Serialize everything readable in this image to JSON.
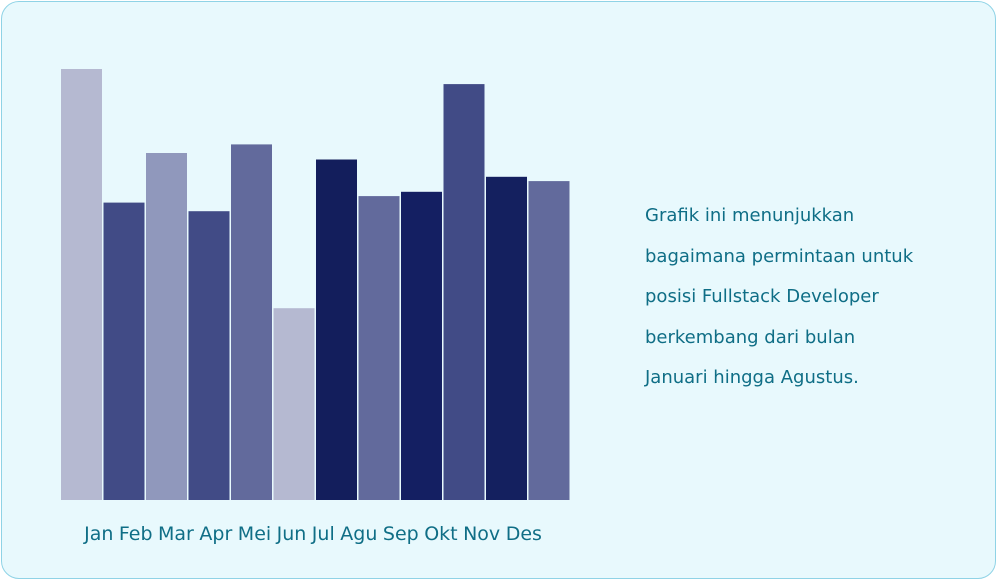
{
  "chart_data": {
    "type": "bar",
    "categories": [
      "Jan",
      "Feb",
      "Mar",
      "Apr",
      "Mei",
      "Jun",
      "Jul",
      "Agu",
      "Sep",
      "Okt",
      "Nov",
      "Des"
    ],
    "values": [
      100,
      69,
      80.5,
      67,
      82.5,
      44.5,
      79,
      70.5,
      71.5,
      96.5,
      75,
      74
    ],
    "bar_colors": [
      "#b5b9d1",
      "#414b86",
      "#9098bc",
      "#414b86",
      "#626a9c",
      "#b5b9d1",
      "#131e5c",
      "#626a9c",
      "#141f62",
      "#414b86",
      "#14205f",
      "#626a9c"
    ],
    "ylim": [
      0,
      100
    ],
    "title": "",
    "xlabel": "",
    "ylabel": "",
    "grid": false,
    "legend": "none"
  },
  "caption": {
    "lines": [
      "Grafik ini menunjukkan",
      "bagaimana permintaan untuk",
      "posisi Fullstack Developer",
      "berkembang dari bulan",
      "Januari hingga Agustus."
    ]
  },
  "colors": {
    "card_background": "#e8f9fd",
    "card_border": "#8fd3e6",
    "text": "#0f6e86"
  }
}
